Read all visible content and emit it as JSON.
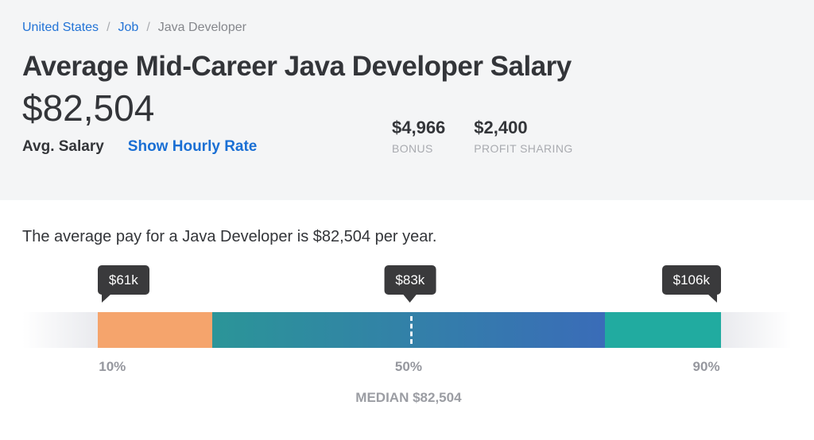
{
  "breadcrumb": {
    "separator": "/",
    "items": [
      {
        "label": "United States",
        "link": true
      },
      {
        "label": "Job",
        "link": true
      },
      {
        "label": "Java Developer",
        "link": false
      }
    ]
  },
  "header": {
    "title": "Average Mid-Career Java Developer Salary",
    "avg_salary_value": "$82,504",
    "avg_salary_label": "Avg. Salary",
    "hourly_rate_link": "Show Hourly Rate",
    "stats": [
      {
        "value": "$4,966",
        "label": "BONUS"
      },
      {
        "value": "$2,400",
        "label": "PROFIT SHARING"
      }
    ]
  },
  "summary": {
    "text": "The average pay for a Java Developer is $82,504 per year."
  },
  "chart": {
    "markers": [
      {
        "tooltip": "$61k",
        "axis_label": "10%"
      },
      {
        "tooltip": "$83k",
        "axis_label": "50%"
      },
      {
        "tooltip": "$106k",
        "axis_label": "90%"
      }
    ],
    "median_label": "MEDIAN $82,504"
  },
  "chart_data": {
    "type": "bar",
    "subtype": "salary-percentile-range",
    "title": "Java Developer salary range",
    "percentiles": [
      {
        "percentile": 10,
        "label": "10%",
        "value": "$61k"
      },
      {
        "percentile": 50,
        "label": "50%",
        "value": "$83k"
      },
      {
        "percentile": 90,
        "label": "90%",
        "value": "$106k"
      }
    ],
    "median_exact": "$82,504",
    "segments": [
      {
        "name": "below-10th",
        "from_pct": 0,
        "to_pct": 9.8,
        "fill": "gradient transparent → #e9eaee"
      },
      {
        "name": "10th-25th",
        "from_pct": 9.8,
        "to_pct": 24.7,
        "fill": "#f5a46c"
      },
      {
        "name": "25th-75th",
        "from_pct": 24.7,
        "to_pct": 75.7,
        "fill": "gradient #2b9598 → #3a6cb8"
      },
      {
        "name": "75th-90th",
        "from_pct": 75.7,
        "to_pct": 90.8,
        "fill": "#21aba0"
      },
      {
        "name": "above-90th",
        "from_pct": 90.8,
        "to_pct": 100,
        "fill": "gradient #e9eaee → transparent"
      }
    ],
    "median_marker": {
      "position_pct": 50.4,
      "style": "white dashed vertical line"
    },
    "legend": "none",
    "grid": "off"
  },
  "colors": {
    "header_background": "#f4f5f6",
    "link_blue": "#2273d6",
    "hourly_link_blue": "#1a6fd4",
    "text_dark": "#333539",
    "text_muted": "#a9abb0",
    "axis_gray": "#95979e",
    "tooltip_background": "#3a3a3c",
    "bar_orange": "#f5a46c",
    "bar_teal": "#2b9598",
    "bar_blue": "#3a6cb8",
    "bar_green": "#21aba0"
  }
}
